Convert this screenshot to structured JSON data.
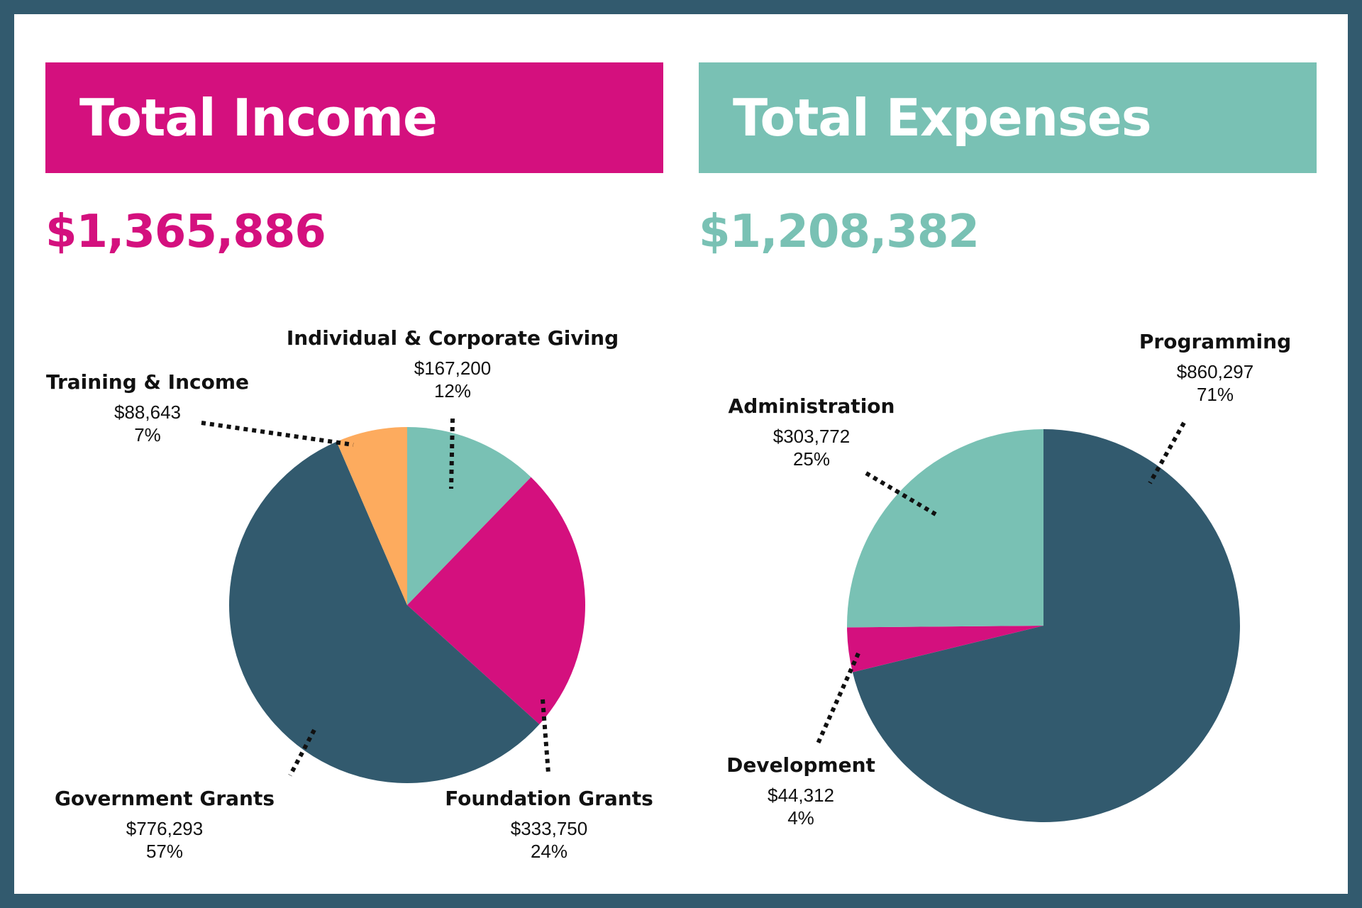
{
  "colors": {
    "magenta": "#d4107e",
    "teal": "#79c1b4",
    "dark": "#325a6e",
    "orange": "#fdab5e"
  },
  "income": {
    "title": "Total Income",
    "total": "$1,365,886"
  },
  "expenses": {
    "title": "Total Expenses",
    "total": "$1,208,382"
  },
  "chart_data": [
    {
      "type": "pie",
      "start": "top",
      "direction": "clockwise",
      "slices": [
        {
          "label": "Individual & Corporate Giving",
          "value": 167200,
          "amount": "$167,200",
          "percent": "12%",
          "color": "#79c1b4"
        },
        {
          "label": "Foundation Grants",
          "value": 333750,
          "amount": "$333,750",
          "percent": "24%",
          "color": "#d4107e"
        },
        {
          "label": "Government Grants",
          "value": 776293,
          "amount": "$776,293",
          "percent": "57%",
          "color": "#325a6e"
        },
        {
          "label": "Training & Income",
          "value": 88643,
          "amount": "$88,643",
          "percent": "7%",
          "color": "#fdab5e"
        }
      ]
    },
    {
      "type": "pie",
      "start": "top",
      "direction": "clockwise",
      "slices": [
        {
          "label": "Programming",
          "value": 860297,
          "amount": "$860,297",
          "percent": "71%",
          "color": "#325a6e"
        },
        {
          "label": "Development",
          "value": 44312,
          "amount": "$44,312",
          "percent": "4%",
          "color": "#d4107e"
        },
        {
          "label": "Administration",
          "value": 303772,
          "amount": "$303,772",
          "percent": "25%",
          "color": "#79c1b4"
        }
      ]
    }
  ]
}
